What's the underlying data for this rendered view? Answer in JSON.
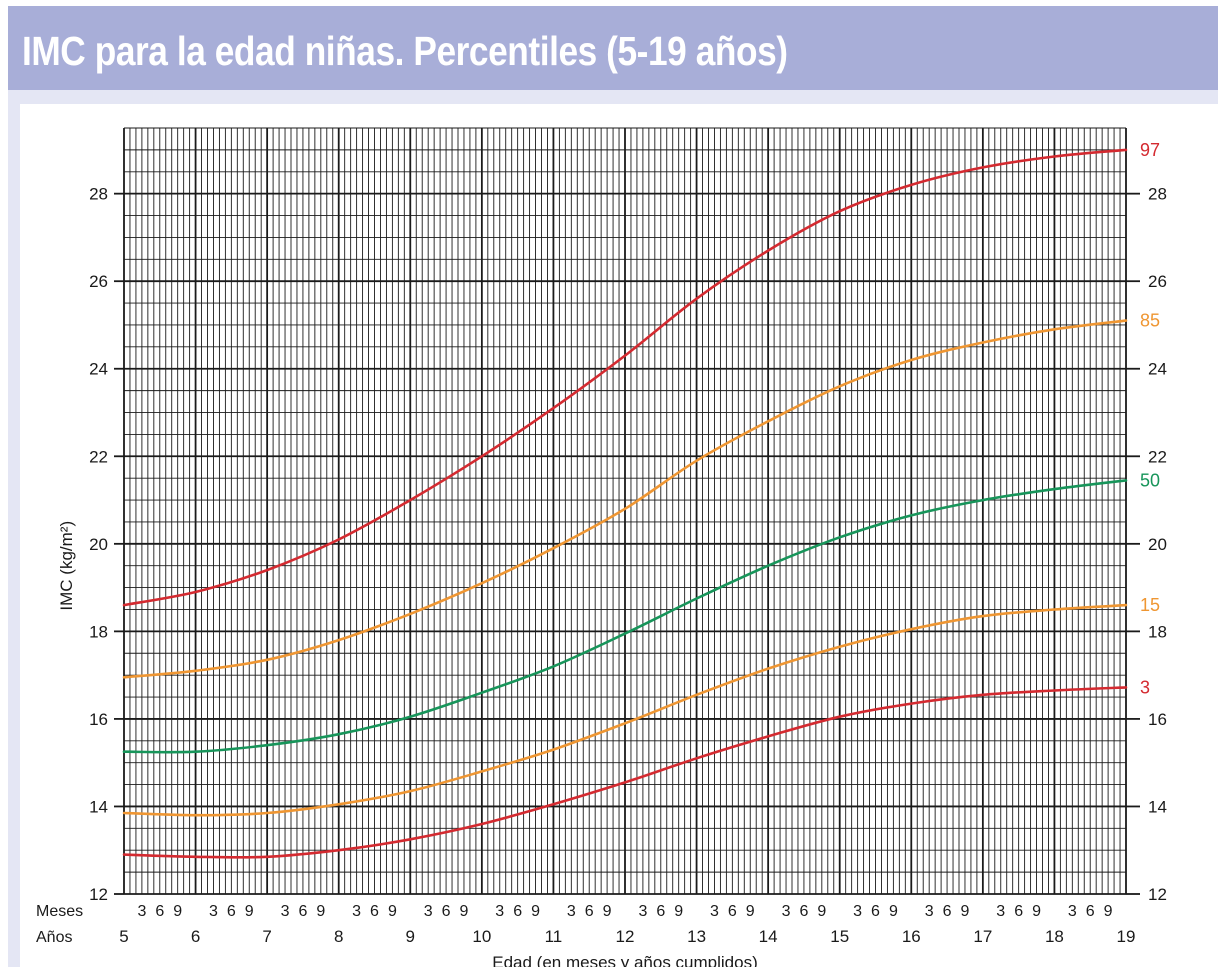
{
  "title": "IMC para la edad niñas. Percentiles (5-19 años)",
  "colors": {
    "red": "#d42a30",
    "orange": "#ef9632",
    "green": "#17955a",
    "title_bg": "#a8aed8",
    "panel_bg": "#e4e6f4"
  },
  "chart_data": {
    "type": "line",
    "xlabel": "Edad (en meses y años cumplidos)",
    "ylabel": "IMC (kg/m²)",
    "xlim": [
      5,
      19
    ],
    "ylim": [
      12,
      29.5
    ],
    "y_ticks": [
      12,
      14,
      16,
      18,
      20,
      22,
      24,
      26,
      28
    ],
    "x_ticks": [
      5,
      6,
      7,
      8,
      9,
      10,
      11,
      12,
      13,
      14,
      15,
      16,
      17,
      18,
      19
    ],
    "month_ticks": [
      "3",
      "6",
      "9"
    ],
    "row_labels": {
      "months": "Meses",
      "years": "Años"
    },
    "grid": true,
    "series": [
      {
        "name": "97",
        "color": "#d42a30",
        "x": [
          5,
          6,
          7,
          8,
          9,
          10,
          11,
          12,
          13,
          14,
          15,
          16,
          17,
          18,
          19
        ],
        "y": [
          18.6,
          18.9,
          19.4,
          20.1,
          21.0,
          22.0,
          23.1,
          24.3,
          25.6,
          26.7,
          27.6,
          28.2,
          28.6,
          28.85,
          29.0
        ]
      },
      {
        "name": "85",
        "color": "#ef9632",
        "x": [
          5,
          6,
          7,
          8,
          9,
          10,
          11,
          12,
          13,
          14,
          15,
          16,
          17,
          18,
          19
        ],
        "y": [
          16.95,
          17.1,
          17.35,
          17.8,
          18.4,
          19.1,
          19.9,
          20.8,
          21.9,
          22.8,
          23.6,
          24.2,
          24.6,
          24.9,
          25.1
        ]
      },
      {
        "name": "50",
        "color": "#17955a",
        "x": [
          5,
          6,
          7,
          8,
          9,
          10,
          11,
          12,
          13,
          14,
          15,
          16,
          17,
          18,
          19
        ],
        "y": [
          15.25,
          15.25,
          15.4,
          15.65,
          16.05,
          16.6,
          17.2,
          17.95,
          18.75,
          19.5,
          20.15,
          20.65,
          21.0,
          21.25,
          21.45
        ]
      },
      {
        "name": "15",
        "color": "#ef9632",
        "x": [
          5,
          6,
          7,
          8,
          9,
          10,
          11,
          12,
          13,
          14,
          15,
          16,
          17,
          18,
          19
        ],
        "y": [
          13.85,
          13.8,
          13.85,
          14.05,
          14.35,
          14.8,
          15.3,
          15.9,
          16.55,
          17.15,
          17.65,
          18.05,
          18.35,
          18.5,
          18.6
        ]
      },
      {
        "name": "3",
        "color": "#d42a30",
        "x": [
          5,
          6,
          7,
          8,
          9,
          10,
          11,
          12,
          13,
          14,
          15,
          16,
          17,
          18,
          19
        ],
        "y": [
          12.9,
          12.85,
          12.85,
          13.0,
          13.25,
          13.6,
          14.05,
          14.55,
          15.1,
          15.6,
          16.05,
          16.35,
          16.55,
          16.65,
          16.72
        ]
      }
    ]
  }
}
